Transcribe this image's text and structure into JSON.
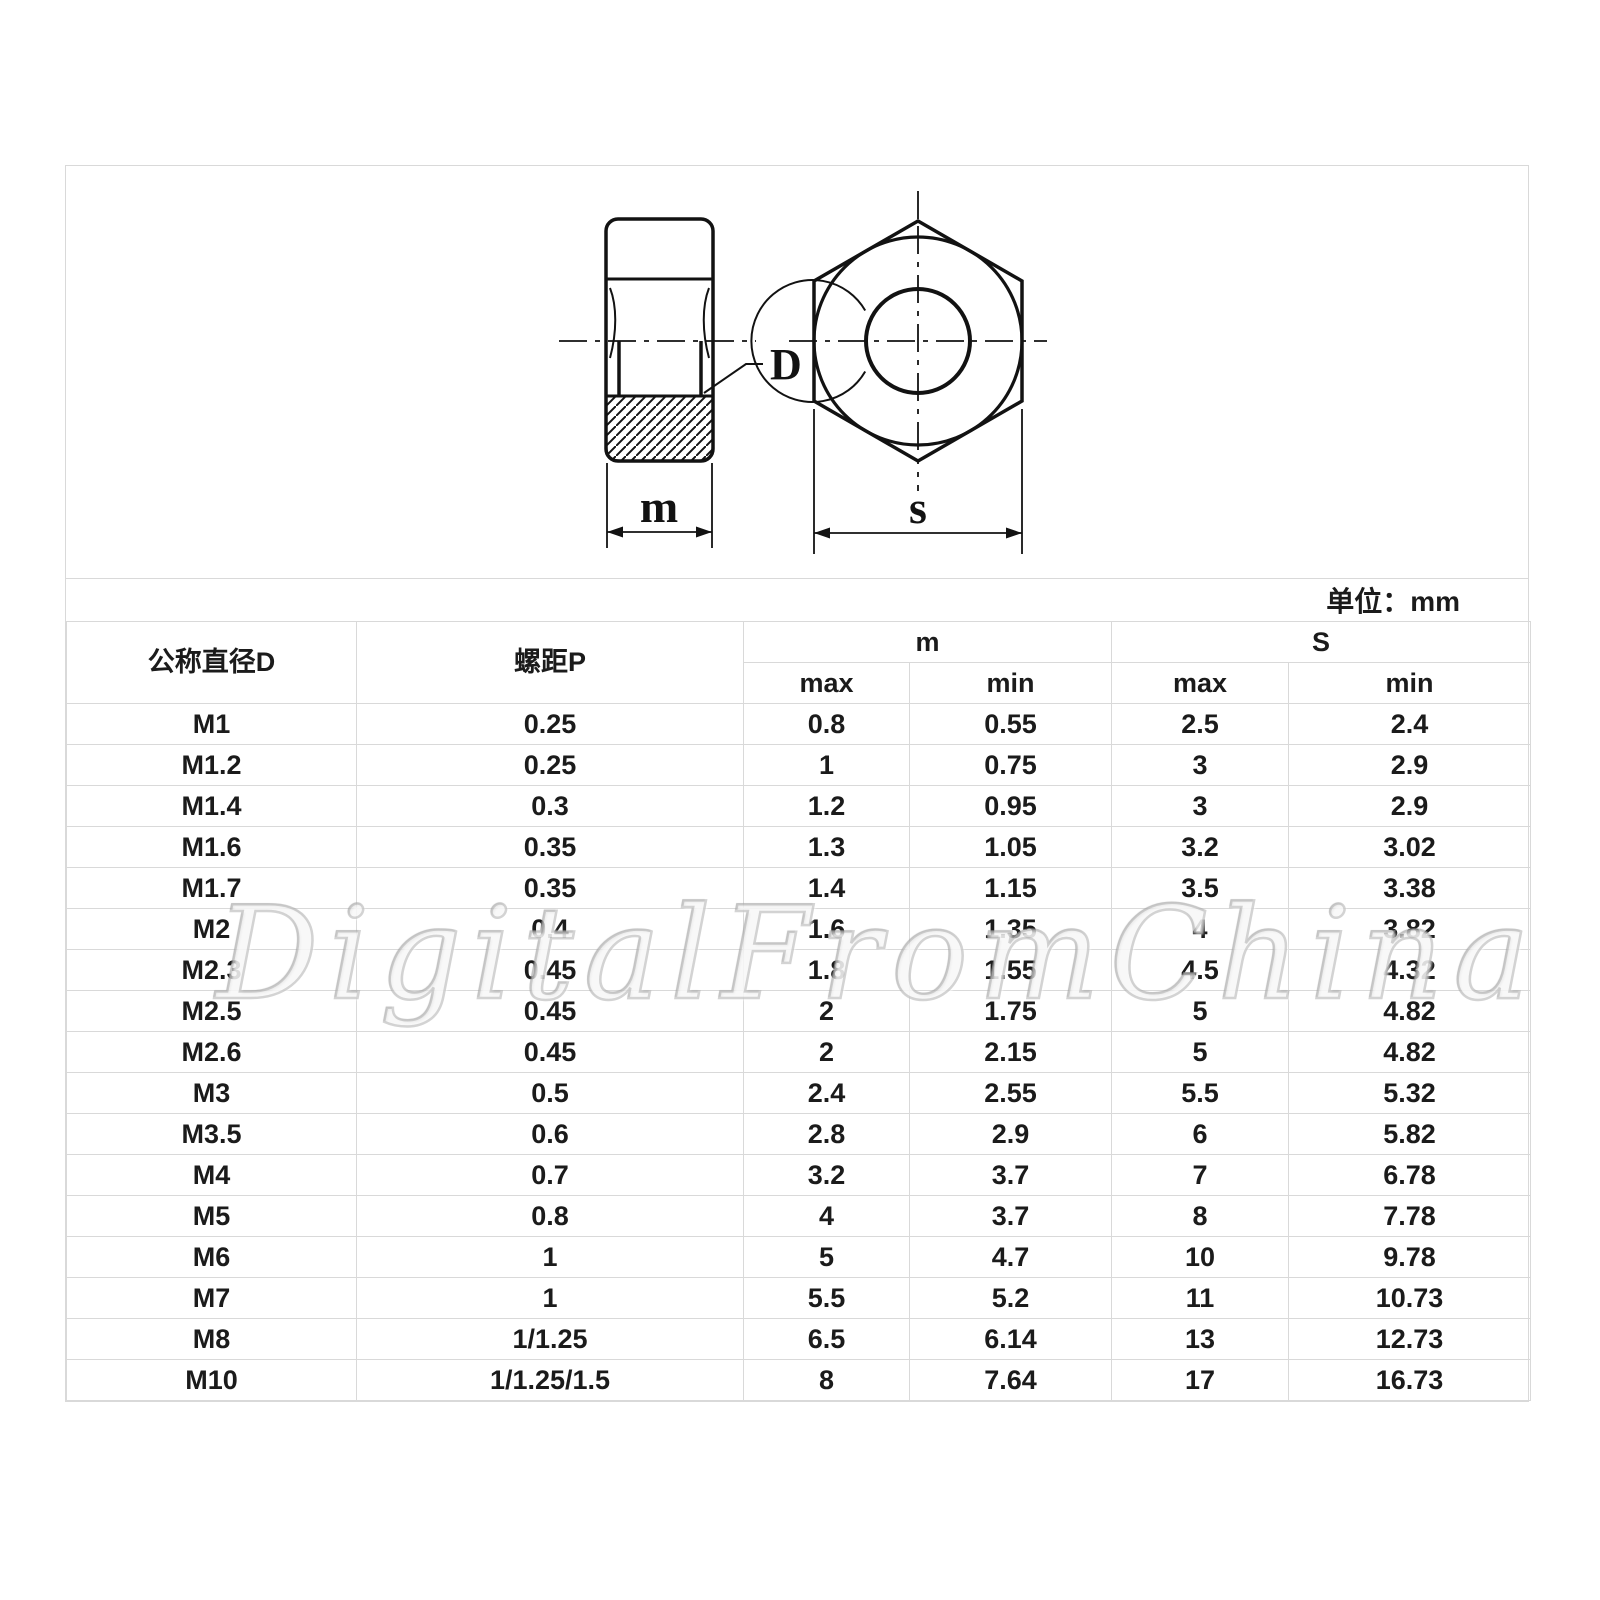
{
  "watermark": {
    "text": "DigitalFromChina"
  },
  "drawing": {
    "labels": {
      "bore_diameter": "D",
      "thickness": "m",
      "width_across_flats": "s"
    }
  },
  "table": {
    "units_label": "单位：mm",
    "headers": {
      "diameter": "公称直径D",
      "pitch": "螺距P",
      "m_group": "m",
      "s_group": "S",
      "m_sub": [
        "max",
        "min"
      ],
      "s_sub": [
        "max",
        "min"
      ]
    },
    "rows": [
      [
        "M1",
        "0.25",
        "0.8",
        "0.55",
        "2.5",
        "2.4"
      ],
      [
        "M1.2",
        "0.25",
        "1",
        "0.75",
        "3",
        "2.9"
      ],
      [
        "M1.4",
        "0.3",
        "1.2",
        "0.95",
        "3",
        "2.9"
      ],
      [
        "M1.6",
        "0.35",
        "1.3",
        "1.05",
        "3.2",
        "3.02"
      ],
      [
        "M1.7",
        "0.35",
        "1.4",
        "1.15",
        "3.5",
        "3.38"
      ],
      [
        "M2",
        "0.4",
        "1.6",
        "1.35",
        "4",
        "3.82"
      ],
      [
        "M2.3",
        "0.45",
        "1.8",
        "1.55",
        "4.5",
        "4.32"
      ],
      [
        "M2.5",
        "0.45",
        "2",
        "1.75",
        "5",
        "4.82"
      ],
      [
        "M2.6",
        "0.45",
        "2",
        "2.15",
        "5",
        "4.82"
      ],
      [
        "M3",
        "0.5",
        "2.4",
        "2.55",
        "5.5",
        "5.32"
      ],
      [
        "M3.5",
        "0.6",
        "2.8",
        "2.9",
        "6",
        "5.82"
      ],
      [
        "M4",
        "0.7",
        "3.2",
        "3.7",
        "7",
        "6.78"
      ],
      [
        "M5",
        "0.8",
        "4",
        "3.7",
        "8",
        "7.78"
      ],
      [
        "M6",
        "1",
        "5",
        "4.7",
        "10",
        "9.78"
      ],
      [
        "M7",
        "1",
        "5.5",
        "5.2",
        "11",
        "10.73"
      ],
      [
        "M8",
        "1/1.25",
        "6.5",
        "6.14",
        "13",
        "12.73"
      ],
      [
        "M10",
        "1/1.25/1.5",
        "8",
        "7.64",
        "17",
        "16.73"
      ]
    ]
  },
  "colors": {
    "border": "#d9d9d9",
    "ink": "#1b1b1b",
    "drawing_line": "#121212"
  }
}
